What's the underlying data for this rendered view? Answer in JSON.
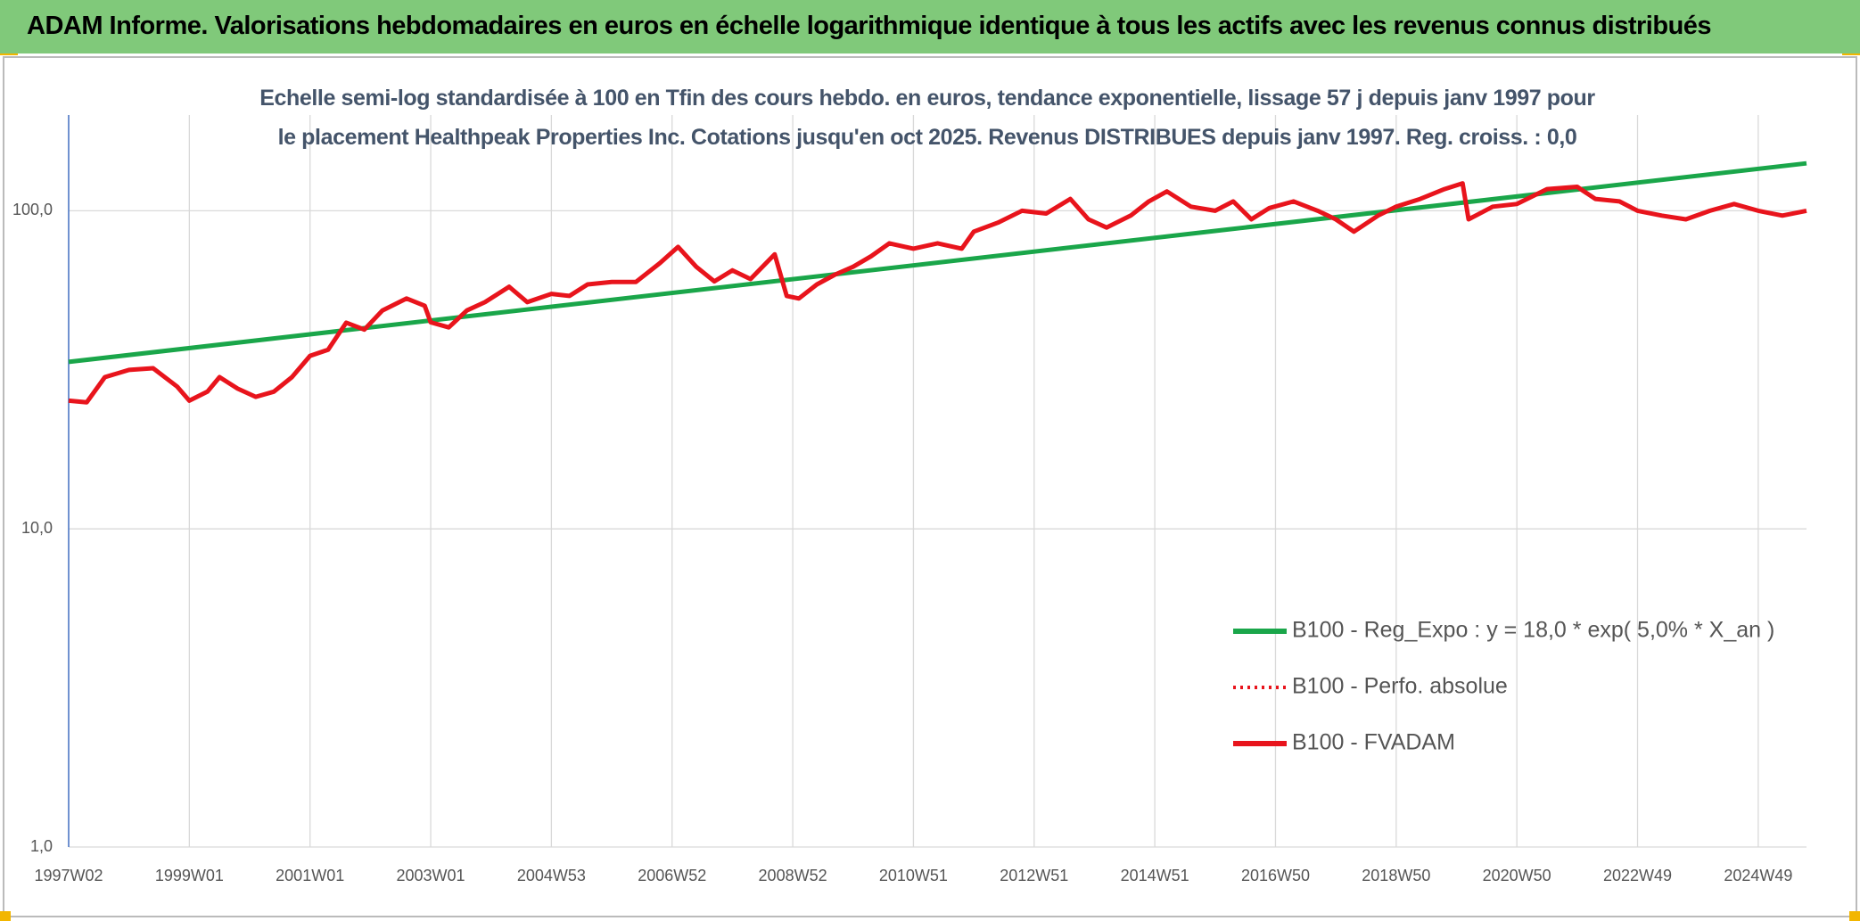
{
  "header": {
    "title": "ADAM Informe. Valorisations hebdomadaires en euros en échelle logarithmique identique à tous les actifs avec les revenus connus distribués"
  },
  "chart_data": {
    "type": "line",
    "subtitle": "Echelle semi-log standardisée à 100 en Tfin des cours hebdo. en euros, tendance exponentielle, lissage 57 j depuis janv 1997 pour le placement Healthpeak Properties Inc. Cotations jusqu'en oct 2025. Revenus DISTRIBUES depuis janv 1997. Reg. croiss. : 0,0",
    "log_scale": true,
    "grid": true,
    "legend": "right",
    "ylim": [
      1,
      200
    ],
    "yticks": [
      {
        "value": 1,
        "label": "1,0"
      },
      {
        "value": 10,
        "label": "10,0"
      },
      {
        "value": 100,
        "label": "100,0"
      }
    ],
    "xlim": [
      1997.0,
      2025.8
    ],
    "xticks": [
      {
        "value": 1997.0,
        "label": "1997W02"
      },
      {
        "value": 1999.0,
        "label": "1999W01"
      },
      {
        "value": 2001.0,
        "label": "2001W01"
      },
      {
        "value": 2003.0,
        "label": "2003W01"
      },
      {
        "value": 2005.0,
        "label": "2004W53"
      },
      {
        "value": 2007.0,
        "label": "2006W52"
      },
      {
        "value": 2009.0,
        "label": "2008W52"
      },
      {
        "value": 2011.0,
        "label": "2010W51"
      },
      {
        "value": 2013.0,
        "label": "2012W51"
      },
      {
        "value": 2015.0,
        "label": "2014W51"
      },
      {
        "value": 2017.0,
        "label": "2016W50"
      },
      {
        "value": 2019.0,
        "label": "2018W50"
      },
      {
        "value": 2021.0,
        "label": "2020W50"
      },
      {
        "value": 2023.0,
        "label": "2022W49"
      },
      {
        "value": 2025.0,
        "label": "2024W49"
      }
    ],
    "x": [
      1997.0,
      1997.3,
      1997.6,
      1998.0,
      1998.4,
      1998.8,
      1999.0,
      1999.3,
      1999.5,
      1999.8,
      2000.1,
      2000.4,
      2000.7,
      2001.0,
      2001.3,
      2001.6,
      2001.9,
      2002.2,
      2002.6,
      2002.9,
      2003.0,
      2003.3,
      2003.6,
      2003.9,
      2004.3,
      2004.6,
      2005.0,
      2005.3,
      2005.6,
      2006.0,
      2006.4,
      2006.8,
      2007.1,
      2007.4,
      2007.7,
      2008.0,
      2008.3,
      2008.7,
      2008.9,
      2009.1,
      2009.4,
      2009.7,
      2010.0,
      2010.3,
      2010.6,
      2011.0,
      2011.4,
      2011.8,
      2012.0,
      2012.4,
      2012.8,
      2013.2,
      2013.6,
      2013.9,
      2014.2,
      2014.6,
      2014.9,
      2015.2,
      2015.6,
      2016.0,
      2016.3,
      2016.6,
      2016.9,
      2017.3,
      2017.7,
      2018.0,
      2018.3,
      2018.7,
      2019.0,
      2019.4,
      2019.8,
      2020.1,
      2020.2,
      2020.6,
      2021.0,
      2021.5,
      2022.0,
      2022.3,
      2022.7,
      2023.0,
      2023.4,
      2023.8,
      2024.2,
      2024.6,
      2025.0,
      2025.4,
      2025.8
    ],
    "series": [
      {
        "name": "B100 - Reg_Expo : y = 18,0 * exp( 5,0% *  X_an )",
        "color": "#1aa64a",
        "style": "solid",
        "x": [
          1997.0,
          2025.8
        ],
        "values": [
          33.5,
          141
        ]
      },
      {
        "name": "B100 - Perfo. absolue",
        "color": "#e8141c",
        "style": "dotted",
        "values": [
          25.3,
          25,
          30,
          31.6,
          32,
          28,
          25.3,
          27,
          30,
          27.6,
          26,
          27,
          30,
          35,
          36.6,
          44.5,
          42.3,
          48.6,
          53,
          50.3,
          44.6,
          43,
          48.6,
          51.6,
          57.7,
          51.6,
          54.8,
          54,
          58.7,
          59.7,
          59.7,
          68.5,
          77,
          66.7,
          60,
          65,
          61,
          73,
          54,
          53,
          58.7,
          63,
          66.7,
          72,
          79,
          76,
          79,
          76,
          86,
          91.8,
          100,
          98,
          109,
          94,
          88.6,
          96.6,
          107,
          115,
          103,
          100,
          107,
          94,
          102,
          107,
          100,
          94,
          86,
          96.6,
          103,
          109,
          117,
          122,
          94,
          103,
          105,
          117,
          119,
          109,
          107,
          100,
          96.6,
          94,
          100,
          105,
          100,
          96.6,
          100
        ]
      },
      {
        "name": "B100 - FVADAM",
        "color": "#e8141c",
        "style": "solid",
        "values": [
          25.3,
          25,
          30,
          31.6,
          32,
          28,
          25.3,
          27,
          30,
          27.6,
          26,
          27,
          30,
          35,
          36.6,
          44.5,
          42.3,
          48.6,
          53,
          50.3,
          44.6,
          43,
          48.6,
          51.6,
          57.7,
          51.6,
          54.8,
          54,
          58.7,
          59.7,
          59.7,
          68.5,
          77,
          66.7,
          60,
          65,
          61,
          73,
          54,
          53,
          58.7,
          63,
          66.7,
          72,
          79,
          76,
          79,
          76,
          86,
          91.8,
          100,
          98,
          109,
          94,
          88.6,
          96.6,
          107,
          115,
          103,
          100,
          107,
          94,
          102,
          107,
          100,
          94,
          86,
          96.6,
          103,
          109,
          117,
          122,
          94,
          103,
          105,
          117,
          119,
          109,
          107,
          100,
          96.6,
          94,
          100,
          105,
          100,
          96.6,
          100
        ]
      }
    ]
  }
}
